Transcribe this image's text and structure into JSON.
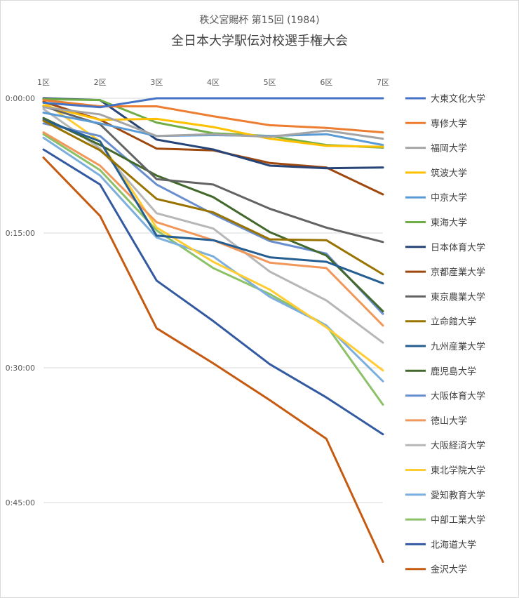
{
  "chart_data": {
    "type": "line",
    "subtitle": "秩父宮賜杯 第15回 (1984)",
    "title": "全日本大学駅伝対校選手権大会",
    "x": [
      "1区",
      "2区",
      "3区",
      "4区",
      "5区",
      "6区",
      "7区"
    ],
    "y_ticks": [
      "0:00:00",
      "0:15:00",
      "0:30:00",
      "0:45:00"
    ],
    "y_unit": "minutes behind leader",
    "ylim": [
      0,
      52
    ],
    "y_reversed": true,
    "grid": true,
    "legend_position": "right",
    "series": [
      {
        "name": "大東文化大学",
        "color": "#4472C4",
        "values": [
          0.5,
          1.0,
          0.0,
          0.0,
          0.0,
          0.0,
          0.0
        ]
      },
      {
        "name": "専修大学",
        "color": "#ED7D31",
        "values": [
          0.2,
          0.9,
          0.9,
          2.0,
          3.0,
          3.3,
          3.8
        ]
      },
      {
        "name": "福岡大学",
        "color": "#A5A5A5",
        "values": [
          1.0,
          1.8,
          4.2,
          4.0,
          4.3,
          3.6,
          4.5
        ]
      },
      {
        "name": "筑波大学",
        "color": "#FFC000",
        "values": [
          0.8,
          2.4,
          2.3,
          3.2,
          4.5,
          5.3,
          5.4
        ]
      },
      {
        "name": "中京大学",
        "color": "#5B9BD5",
        "values": [
          1.6,
          2.8,
          4.2,
          4.1,
          4.2,
          4.0,
          5.2
        ]
      },
      {
        "name": "東海大学",
        "color": "#70AD47",
        "values": [
          0.1,
          0.2,
          2.7,
          3.9,
          4.2,
          5.2,
          5.5
        ]
      },
      {
        "name": "日本体育大学",
        "color": "#264478",
        "values": [
          0.0,
          0.2,
          4.6,
          5.7,
          7.5,
          7.8,
          7.7
        ]
      },
      {
        "name": "京都産業大学",
        "color": "#9E480E",
        "values": [
          0.4,
          2.4,
          5.6,
          5.8,
          7.2,
          7.7,
          10.7
        ]
      },
      {
        "name": "東京農業大学",
        "color": "#636363",
        "values": [
          0.9,
          2.9,
          9.0,
          9.6,
          12.3,
          14.4,
          16.0
        ]
      },
      {
        "name": "立命館大学",
        "color": "#997300",
        "values": [
          2.5,
          5.8,
          11.2,
          12.7,
          15.7,
          15.8,
          19.6
        ]
      },
      {
        "name": "九州産業大学",
        "color": "#255E91",
        "values": [
          2.4,
          4.8,
          15.3,
          15.8,
          17.7,
          18.2,
          20.6
        ]
      },
      {
        "name": "鹿児島大学",
        "color": "#43682B",
        "values": [
          2.2,
          5.2,
          8.6,
          11.0,
          14.9,
          17.5,
          23.7
        ]
      },
      {
        "name": "大阪体育大学",
        "color": "#698ED0",
        "values": [
          2.8,
          4.2,
          9.6,
          12.9,
          15.9,
          17.3,
          24.0
        ]
      },
      {
        "name": "徳山大学",
        "color": "#F1975A",
        "values": [
          3.8,
          7.5,
          13.8,
          15.8,
          18.3,
          18.9,
          25.3
        ]
      },
      {
        "name": "大阪経済大学",
        "color": "#B7B7B7",
        "values": [
          1.2,
          5.6,
          12.8,
          14.5,
          19.3,
          22.5,
          27.2
        ]
      },
      {
        "name": "東北学院大学",
        "color": "#FFCD33",
        "values": [
          0.4,
          4.8,
          14.4,
          18.2,
          21.3,
          25.5,
          30.3
        ]
      },
      {
        "name": "愛知教育大学",
        "color": "#7CAFDD",
        "values": [
          4.4,
          8.6,
          15.5,
          17.6,
          22.1,
          25.3,
          31.5
        ]
      },
      {
        "name": "中部工業大学",
        "color": "#8CC168",
        "values": [
          4.0,
          8.0,
          14.7,
          18.9,
          21.8,
          25.3,
          34.1
        ]
      },
      {
        "name": "北海道大学",
        "color": "#335AA1",
        "values": [
          5.7,
          9.6,
          20.3,
          24.8,
          29.6,
          33.3,
          37.4
        ]
      },
      {
        "name": "金沢大学",
        "color": "#C55A11",
        "values": [
          6.6,
          13.1,
          25.6,
          29.5,
          33.6,
          37.9,
          51.6
        ]
      }
    ]
  }
}
